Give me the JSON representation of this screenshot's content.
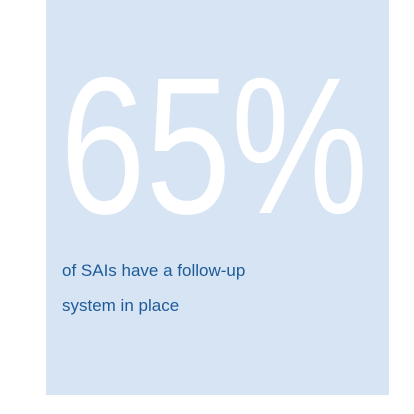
{
  "stat": {
    "value": "65%",
    "caption": "of SAIs have a follow-up system in place"
  }
}
